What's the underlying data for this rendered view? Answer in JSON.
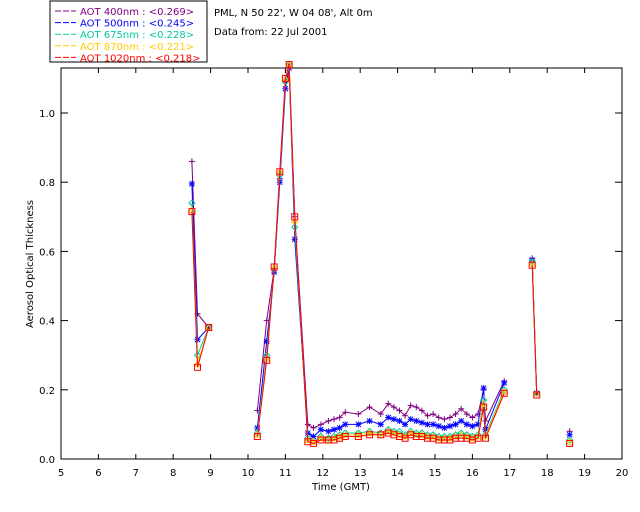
{
  "info": {
    "site": "PML, N 50 22', W 04 08', Alt 0m",
    "date": "Data from: 22 Jul 2001"
  },
  "chart_data": {
    "type": "line",
    "xlabel": "Time (GMT)",
    "ylabel": "Aerosol Optical Thickness",
    "xlim": [
      5,
      20
    ],
    "ylim": [
      0,
      1.13
    ],
    "xticks": [
      5,
      6,
      7,
      8,
      9,
      10,
      11,
      12,
      13,
      14,
      15,
      16,
      17,
      18,
      19,
      20
    ],
    "yticks": [
      0.0,
      0.2,
      0.4,
      0.6,
      0.8,
      1.0
    ],
    "ytick_labels": [
      "0.0",
      "0.2",
      "0.4",
      "0.6",
      "0.8",
      "1.0"
    ],
    "legend_position": "top-left outside",
    "series": [
      {
        "name": "AOT  400nm : <0.269>",
        "color": "#800080",
        "marker": "plus",
        "points": [
          [
            8.5,
            0.86
          ],
          [
            8.65,
            0.42
          ],
          [
            8.95,
            0.38
          ],
          [
            10.25,
            0.14
          ],
          [
            10.5,
            0.4
          ],
          [
            10.7,
            0.55
          ],
          [
            10.85,
            0.81
          ],
          [
            11.0,
            1.09
          ],
          [
            11.1,
            1.14
          ],
          [
            11.25,
            0.7
          ],
          [
            11.6,
            0.1
          ],
          [
            11.75,
            0.09
          ],
          [
            11.95,
            0.1
          ],
          [
            12.15,
            0.11
          ],
          [
            12.3,
            0.115
          ],
          [
            12.45,
            0.12
          ],
          [
            12.6,
            0.135
          ],
          [
            12.95,
            0.13
          ],
          [
            13.25,
            0.15
          ],
          [
            13.55,
            0.13
          ],
          [
            13.75,
            0.16
          ],
          [
            13.9,
            0.15
          ],
          [
            14.05,
            0.14
          ],
          [
            14.2,
            0.125
          ],
          [
            14.35,
            0.155
          ],
          [
            14.5,
            0.15
          ],
          [
            14.65,
            0.14
          ],
          [
            14.8,
            0.125
          ],
          [
            14.95,
            0.13
          ],
          [
            15.1,
            0.12
          ],
          [
            15.25,
            0.115
          ],
          [
            15.4,
            0.12
          ],
          [
            15.55,
            0.13
          ],
          [
            15.7,
            0.145
          ],
          [
            15.85,
            0.13
          ],
          [
            16.0,
            0.12
          ],
          [
            16.15,
            0.13
          ],
          [
            16.3,
            0.2
          ],
          [
            16.35,
            0.11
          ],
          [
            16.85,
            0.225
          ],
          [
            17.6,
            0.58
          ],
          [
            17.72,
            0.19
          ],
          [
            18.6,
            0.08
          ]
        ]
      },
      {
        "name": "AOT  500nm : <0.245>",
        "color": "#0000ff",
        "marker": "star",
        "points": [
          [
            8.5,
            0.795
          ],
          [
            8.65,
            0.345
          ],
          [
            8.95,
            0.38
          ],
          [
            10.25,
            0.09
          ],
          [
            10.5,
            0.34
          ],
          [
            10.7,
            0.54
          ],
          [
            10.85,
            0.8
          ],
          [
            11.0,
            1.07
          ],
          [
            11.1,
            1.13
          ],
          [
            11.25,
            0.635
          ],
          [
            11.6,
            0.075
          ],
          [
            11.75,
            0.065
          ],
          [
            11.95,
            0.085
          ],
          [
            12.15,
            0.08
          ],
          [
            12.3,
            0.085
          ],
          [
            12.45,
            0.09
          ],
          [
            12.6,
            0.1
          ],
          [
            12.95,
            0.1
          ],
          [
            13.25,
            0.11
          ],
          [
            13.55,
            0.1
          ],
          [
            13.75,
            0.12
          ],
          [
            13.9,
            0.115
          ],
          [
            14.05,
            0.11
          ],
          [
            14.2,
            0.1
          ],
          [
            14.35,
            0.115
          ],
          [
            14.5,
            0.11
          ],
          [
            14.65,
            0.105
          ],
          [
            14.8,
            0.1
          ],
          [
            14.95,
            0.1
          ],
          [
            15.1,
            0.095
          ],
          [
            15.25,
            0.09
          ],
          [
            15.4,
            0.095
          ],
          [
            15.55,
            0.1
          ],
          [
            15.7,
            0.11
          ],
          [
            15.85,
            0.1
          ],
          [
            16.0,
            0.095
          ],
          [
            16.15,
            0.1
          ],
          [
            16.3,
            0.205
          ],
          [
            16.35,
            0.085
          ],
          [
            16.85,
            0.22
          ],
          [
            17.6,
            0.575
          ],
          [
            17.72,
            0.19
          ],
          [
            18.6,
            0.07
          ]
        ]
      },
      {
        "name": "AOT  675nm : <0.228>",
        "color": "#00c8a0",
        "marker": "diamond",
        "points": [
          [
            8.5,
            0.74
          ],
          [
            8.65,
            0.3
          ],
          [
            8.95,
            0.38
          ],
          [
            10.25,
            0.075
          ],
          [
            10.5,
            0.3
          ],
          [
            10.7,
            0.55
          ],
          [
            10.85,
            0.82
          ],
          [
            11.0,
            1.09
          ],
          [
            11.1,
            1.14
          ],
          [
            11.25,
            0.67
          ],
          [
            11.6,
            0.06
          ],
          [
            11.75,
            0.05
          ],
          [
            11.95,
            0.065
          ],
          [
            12.15,
            0.06
          ],
          [
            12.3,
            0.065
          ],
          [
            12.45,
            0.07
          ],
          [
            12.6,
            0.075
          ],
          [
            12.95,
            0.075
          ],
          [
            13.25,
            0.08
          ],
          [
            13.55,
            0.075
          ],
          [
            13.75,
            0.085
          ],
          [
            13.9,
            0.08
          ],
          [
            14.05,
            0.08
          ],
          [
            14.2,
            0.07
          ],
          [
            14.35,
            0.08
          ],
          [
            14.5,
            0.075
          ],
          [
            14.65,
            0.075
          ],
          [
            14.8,
            0.07
          ],
          [
            14.95,
            0.07
          ],
          [
            15.1,
            0.065
          ],
          [
            15.25,
            0.065
          ],
          [
            15.4,
            0.065
          ],
          [
            15.55,
            0.07
          ],
          [
            15.7,
            0.075
          ],
          [
            15.85,
            0.07
          ],
          [
            16.0,
            0.065
          ],
          [
            16.15,
            0.07
          ],
          [
            16.3,
            0.17
          ],
          [
            16.35,
            0.07
          ],
          [
            16.85,
            0.2
          ],
          [
            17.6,
            0.57
          ],
          [
            17.72,
            0.19
          ],
          [
            18.6,
            0.055
          ]
        ]
      },
      {
        "name": "AOT  870nm : <0.221>",
        "color": "#ffcc00",
        "marker": "triangle",
        "points": [
          [
            8.5,
            0.72
          ],
          [
            8.65,
            0.275
          ],
          [
            8.95,
            0.38
          ],
          [
            10.25,
            0.07
          ],
          [
            10.5,
            0.29
          ],
          [
            10.7,
            0.555
          ],
          [
            10.85,
            0.83
          ],
          [
            11.0,
            1.1
          ],
          [
            11.1,
            1.14
          ],
          [
            11.25,
            0.69
          ],
          [
            11.6,
            0.055
          ],
          [
            11.75,
            0.05
          ],
          [
            11.95,
            0.06
          ],
          [
            12.15,
            0.055
          ],
          [
            12.3,
            0.06
          ],
          [
            12.45,
            0.065
          ],
          [
            12.6,
            0.07
          ],
          [
            12.95,
            0.07
          ],
          [
            13.25,
            0.075
          ],
          [
            13.55,
            0.07
          ],
          [
            13.75,
            0.08
          ],
          [
            13.9,
            0.075
          ],
          [
            14.05,
            0.07
          ],
          [
            14.2,
            0.065
          ],
          [
            14.35,
            0.075
          ],
          [
            14.5,
            0.07
          ],
          [
            14.65,
            0.07
          ],
          [
            14.8,
            0.065
          ],
          [
            14.95,
            0.065
          ],
          [
            15.1,
            0.06
          ],
          [
            15.25,
            0.06
          ],
          [
            15.4,
            0.06
          ],
          [
            15.55,
            0.065
          ],
          [
            15.7,
            0.07
          ],
          [
            15.85,
            0.065
          ],
          [
            16.0,
            0.06
          ],
          [
            16.15,
            0.065
          ],
          [
            16.3,
            0.16
          ],
          [
            16.35,
            0.065
          ],
          [
            16.85,
            0.195
          ],
          [
            17.6,
            0.565
          ],
          [
            17.72,
            0.19
          ],
          [
            18.6,
            0.05
          ]
        ]
      },
      {
        "name": "AOT 1020nm : <0.218>",
        "color": "#ff0000",
        "marker": "square",
        "points": [
          [
            8.5,
            0.715
          ],
          [
            8.65,
            0.265
          ],
          [
            8.95,
            0.38
          ],
          [
            10.25,
            0.065
          ],
          [
            10.5,
            0.285
          ],
          [
            10.7,
            0.555
          ],
          [
            10.85,
            0.83
          ],
          [
            11.0,
            1.1
          ],
          [
            11.1,
            1.14
          ],
          [
            11.25,
            0.7
          ],
          [
            11.6,
            0.05
          ],
          [
            11.75,
            0.045
          ],
          [
            11.95,
            0.055
          ],
          [
            12.15,
            0.055
          ],
          [
            12.3,
            0.055
          ],
          [
            12.45,
            0.06
          ],
          [
            12.6,
            0.065
          ],
          [
            12.95,
            0.065
          ],
          [
            13.25,
            0.07
          ],
          [
            13.55,
            0.07
          ],
          [
            13.75,
            0.075
          ],
          [
            13.9,
            0.07
          ],
          [
            14.05,
            0.065
          ],
          [
            14.2,
            0.06
          ],
          [
            14.35,
            0.07
          ],
          [
            14.5,
            0.065
          ],
          [
            14.65,
            0.065
          ],
          [
            14.8,
            0.06
          ],
          [
            14.95,
            0.06
          ],
          [
            15.1,
            0.055
          ],
          [
            15.25,
            0.055
          ],
          [
            15.4,
            0.055
          ],
          [
            15.55,
            0.06
          ],
          [
            15.7,
            0.06
          ],
          [
            15.85,
            0.06
          ],
          [
            16.0,
            0.055
          ],
          [
            16.15,
            0.06
          ],
          [
            16.3,
            0.15
          ],
          [
            16.35,
            0.06
          ],
          [
            16.85,
            0.19
          ],
          [
            17.6,
            0.56
          ],
          [
            17.72,
            0.185
          ],
          [
            18.6,
            0.045
          ]
        ]
      }
    ]
  }
}
